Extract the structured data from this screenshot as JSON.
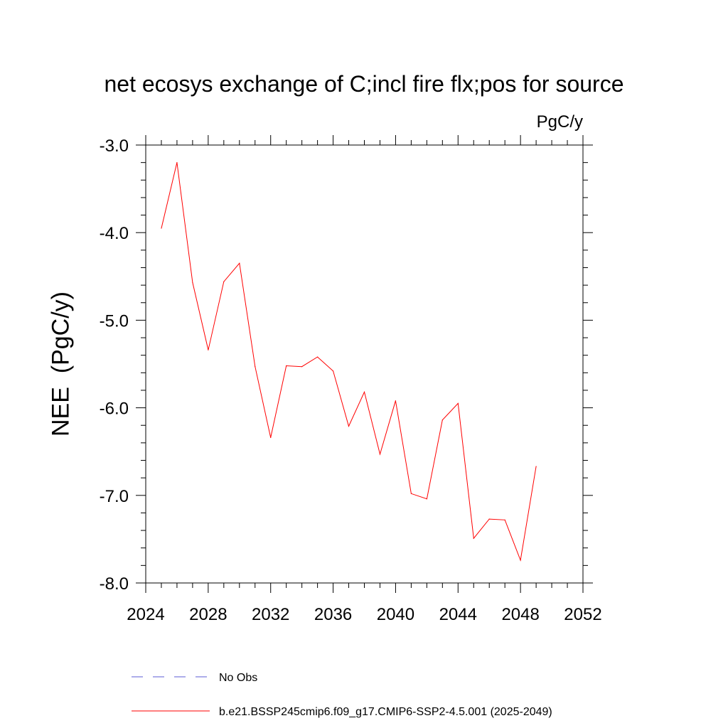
{
  "chart_data": {
    "type": "line",
    "title": "net ecosys exchange of C;incl fire flx;pos for source",
    "units_label": "PgC/y",
    "ylabel": "NEE  (PgC/y)",
    "xlabel": "",
    "xlim": [
      2024,
      2052
    ],
    "ylim": [
      -8.0,
      -3.0
    ],
    "x_ticks": [
      2024,
      2028,
      2032,
      2036,
      2040,
      2044,
      2048,
      2052
    ],
    "x_tick_labels": [
      "2024",
      "2028",
      "2032",
      "2036",
      "2040",
      "2044",
      "2048",
      "2052"
    ],
    "y_ticks": [
      -3.0,
      -4.0,
      -5.0,
      -6.0,
      -7.0,
      -8.0
    ],
    "y_tick_labels": [
      "-3.0",
      "-4.0",
      "-5.0",
      "-6.0",
      "-7.0",
      "-8.0"
    ],
    "grid": false,
    "legend_position": "bottom",
    "series": [
      {
        "name": "b.e21.BSSP245cmip6.f09_g17.CMIP6-SSP2-4.5.001 (2025-2049)",
        "color": "#ff0000",
        "style": "solid",
        "x": [
          2025,
          2026,
          2027,
          2028,
          2029,
          2030,
          2031,
          2032,
          2033,
          2034,
          2035,
          2036,
          2037,
          2038,
          2039,
          2040,
          2041,
          2042,
          2043,
          2044,
          2045,
          2046,
          2047,
          2048,
          2049
        ],
        "y": [
          -3.95,
          -3.2,
          -4.57,
          -5.34,
          -4.56,
          -4.35,
          -5.53,
          -6.34,
          -5.52,
          -5.53,
          -5.42,
          -5.58,
          -6.21,
          -5.82,
          -6.53,
          -5.92,
          -6.98,
          -7.04,
          -6.14,
          -5.95,
          -7.49,
          -7.27,
          -7.28,
          -7.74,
          -6.67
        ]
      }
    ],
    "legend": [
      {
        "label": "No Obs",
        "color": "#5b5bd6",
        "style": "dashed"
      },
      {
        "label": "b.e21.BSSP245cmip6.f09_g17.CMIP6-SSP2-4.5.001 (2025-2049)",
        "color": "#ff0000",
        "style": "solid"
      }
    ]
  }
}
